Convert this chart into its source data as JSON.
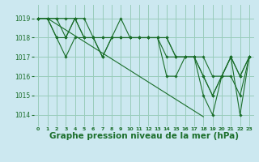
{
  "background_color": "#cce8f0",
  "grid_color": "#99ccbb",
  "line_color": "#1a6e2a",
  "xlabel": "Graphe pression niveau de la mer (hPa)",
  "xlabel_fontsize": 7.5,
  "ylabel_ticks": [
    1014,
    1015,
    1016,
    1017,
    1018,
    1019
  ],
  "xlim": [
    -0.5,
    23.5
  ],
  "ylim": [
    1013.4,
    1019.7
  ],
  "xtick_labels": [
    "0",
    "1",
    "2",
    "3",
    "4",
    "5",
    "6",
    "7",
    "8",
    "9",
    "10",
    "11",
    "12",
    "13",
    "14",
    "15",
    "16",
    "17",
    "18",
    "19",
    "20",
    "21",
    "22",
    "23"
  ],
  "series": [
    [
      1019,
      1019,
      1019,
      1019,
      1019,
      1019,
      1018,
      1017,
      1018,
      1019,
      1018,
      1018,
      1018,
      1018,
      1016,
      1016,
      1017,
      1017,
      1015,
      1014,
      1016,
      1017,
      1014,
      1017
    ],
    [
      1019,
      1019,
      1019,
      1018,
      1019,
      1018,
      1018,
      1018,
      1018,
      1018,
      1018,
      1018,
      1018,
      1018,
      1018,
      1017,
      1017,
      1017,
      1016,
      1015,
      1016,
      1017,
      1016,
      1017
    ],
    [
      1019,
      1019,
      1018,
      1018,
      1019,
      1018,
      1018,
      1017,
      1018,
      1018,
      1018,
      1018,
      1018,
      1018,
      1018,
      1017,
      1017,
      1017,
      1017,
      1016,
      1016,
      1017,
      1016,
      1017
    ],
    [
      1019,
      1019,
      1018,
      1017,
      1018,
      1018,
      1018,
      1018,
      1018,
      1018,
      1018,
      1018,
      1018,
      1018,
      1017,
      1017,
      1017,
      1017,
      1016,
      1015,
      1016,
      1016,
      1015,
      1017
    ]
  ],
  "series_straight": [
    1019,
    1019,
    1018.7,
    1018.4,
    1018.1,
    1017.8,
    1017.5,
    1017.2,
    1016.9,
    1016.6,
    1016.3,
    1016.0,
    1015.7,
    1015.4,
    1015.1,
    1014.8,
    1014.5,
    1014.2,
    1013.9,
    null,
    null,
    null,
    null,
    null
  ]
}
